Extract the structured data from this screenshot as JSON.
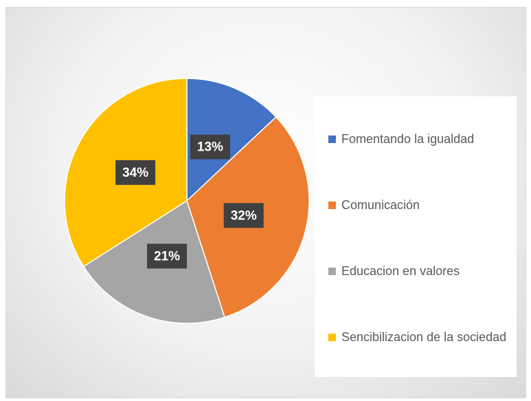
{
  "chart_data": {
    "type": "pie",
    "categories": [
      "Fomentando la igualdad",
      "Comunicación",
      "Educacion en valores",
      "Sencibilizacion de la sociedad"
    ],
    "values": [
      13,
      32,
      21,
      34
    ],
    "value_labels": [
      "13%",
      "32%",
      "21%",
      "34%"
    ],
    "colors": [
      "#4472c4",
      "#ed7d31",
      "#a5a5a5",
      "#ffc000"
    ],
    "legend": "right"
  }
}
